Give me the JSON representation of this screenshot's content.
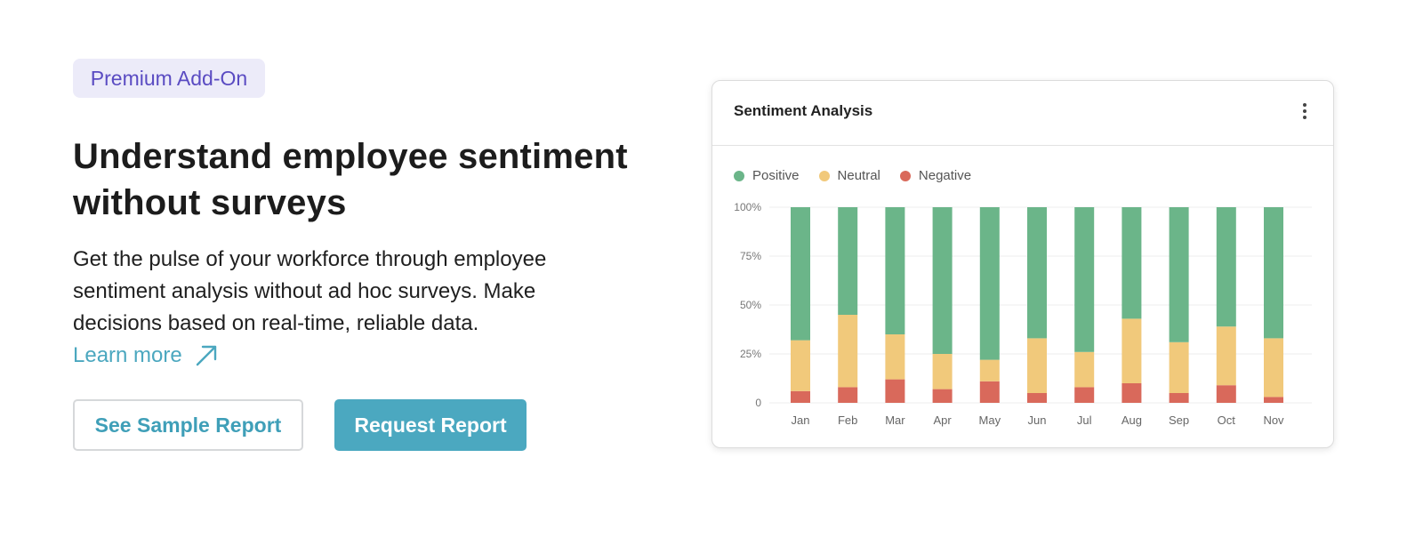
{
  "badge": {
    "label": "Premium Add-On"
  },
  "headline": {
    "line1": "Understand employee sentiment",
    "line2": "without surveys"
  },
  "description": "Get the pulse of your workforce through employee sentiment analysis without ad hoc surveys. Make decisions based on real-time, reliable data.",
  "learn_more": {
    "label": "Learn more",
    "icon": "arrow-up-right-icon"
  },
  "buttons": {
    "sample_report": "See Sample Report",
    "request_report": "Request Report"
  },
  "card": {
    "title": "Sentiment Analysis",
    "menu_icon": "more-vertical-icon"
  },
  "colors": {
    "accent": "#4ba8c0",
    "badge_text": "#5a4bc2",
    "badge_bg": "#ecebf9",
    "positive": "#6bb589",
    "neutral": "#f1c97b",
    "negative": "#d9695b"
  },
  "chart_data": {
    "type": "bar",
    "stacked": true,
    "title": "",
    "categories": [
      "Jan",
      "Feb",
      "Mar",
      "Apr",
      "May",
      "Jun",
      "Jul",
      "Aug",
      "Sep",
      "Oct",
      "Nov"
    ],
    "series": [
      {
        "name": "Negative",
        "color": "#d9695b",
        "values": [
          6,
          8,
          12,
          7,
          11,
          5,
          8,
          10,
          5,
          9,
          3
        ]
      },
      {
        "name": "Neutral",
        "color": "#f1c97b",
        "values": [
          26,
          37,
          23,
          18,
          11,
          28,
          18,
          33,
          26,
          30,
          30
        ]
      },
      {
        "name": "Positive",
        "color": "#6bb589",
        "values": [
          68,
          55,
          65,
          75,
          78,
          67,
          74,
          57,
          69,
          61,
          67
        ]
      }
    ],
    "legend": [
      "Positive",
      "Neutral",
      "Negative"
    ],
    "legend_position": "top-left",
    "yticks": [
      "0",
      "25%",
      "50%",
      "75%",
      "100%"
    ],
    "ylim": [
      0,
      100
    ],
    "grid": true
  }
}
